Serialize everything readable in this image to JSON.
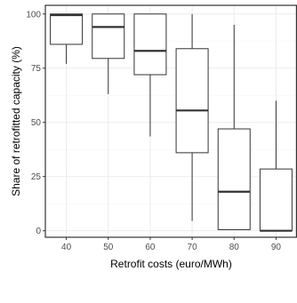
{
  "chart_data": {
    "type": "boxplot",
    "title": "",
    "xlabel": "Retrofit costs (euro/MWh)",
    "ylabel": "Share of retrofitted capacity (%)",
    "ylim": [
      -3,
      104
    ],
    "y_ticks": [
      "0",
      "25",
      "50",
      "75",
      "100"
    ],
    "y_tick_values": [
      0,
      25,
      50,
      75,
      100
    ],
    "grid": true,
    "categories": [
      "40",
      "50",
      "60",
      "70",
      "80",
      "90"
    ],
    "boxes": [
      {
        "category": "40",
        "min": 77,
        "q1": 86,
        "median": 99.5,
        "q3": 100,
        "max": 100
      },
      {
        "category": "50",
        "min": 63,
        "q1": 79.5,
        "median": 94,
        "q3": 100,
        "max": 100
      },
      {
        "category": "60",
        "min": 43.5,
        "q1": 72,
        "median": 83,
        "q3": 100,
        "max": 100
      },
      {
        "category": "70",
        "min": 4.5,
        "q1": 36,
        "median": 55.5,
        "q3": 84,
        "max": 100
      },
      {
        "category": "80",
        "min": 0.5,
        "q1": 0.5,
        "median": 18,
        "q3": 47,
        "max": 95
      },
      {
        "category": "90",
        "min": 0,
        "q1": 0,
        "median": 0,
        "q3": 28.5,
        "max": 60
      }
    ]
  }
}
